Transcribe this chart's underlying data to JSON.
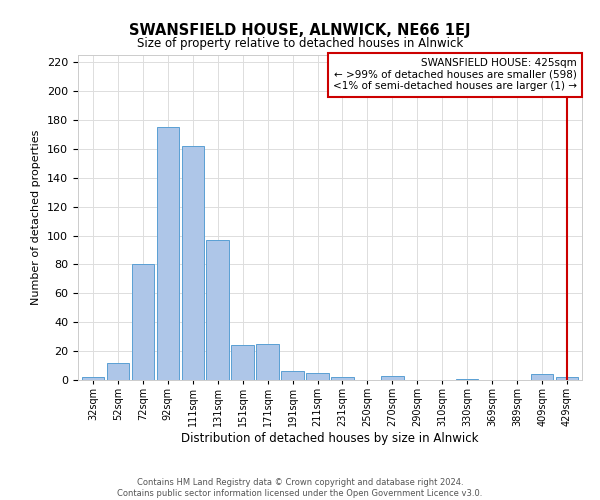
{
  "title": "SWANSFIELD HOUSE, ALNWICK, NE66 1EJ",
  "subtitle": "Size of property relative to detached houses in Alnwick",
  "xlabel": "Distribution of detached houses by size in Alnwick",
  "ylabel": "Number of detached properties",
  "bar_labels": [
    "32sqm",
    "52sqm",
    "72sqm",
    "92sqm",
    "111sqm",
    "131sqm",
    "151sqm",
    "171sqm",
    "191sqm",
    "211sqm",
    "231sqm",
    "250sqm",
    "270sqm",
    "290sqm",
    "310sqm",
    "330sqm",
    "369sqm",
    "389sqm",
    "409sqm",
    "429sqm"
  ],
  "bar_heights": [
    2,
    12,
    80,
    175,
    162,
    97,
    24,
    25,
    6,
    5,
    2,
    0,
    3,
    0,
    0,
    1,
    0,
    0,
    4,
    2
  ],
  "bar_color": "#aec6e8",
  "bar_edge_color": "#5a9fd4",
  "annotation_title": "SWANSFIELD HOUSE: 425sqm",
  "annotation_line1": "← >99% of detached houses are smaller (598)",
  "annotation_line2": "<1% of semi-detached houses are larger (1) →",
  "annotation_box_color": "#cc0000",
  "vline_color": "#cc0000",
  "vline_x_index": 19,
  "footer1": "Contains HM Land Registry data © Crown copyright and database right 2024.",
  "footer2": "Contains public sector information licensed under the Open Government Licence v3.0.",
  "ylim": [
    0,
    225
  ],
  "yticks": [
    0,
    20,
    40,
    60,
    80,
    100,
    120,
    140,
    160,
    180,
    200,
    220
  ],
  "grid_color": "#dddddd",
  "bg_color": "#ffffff"
}
